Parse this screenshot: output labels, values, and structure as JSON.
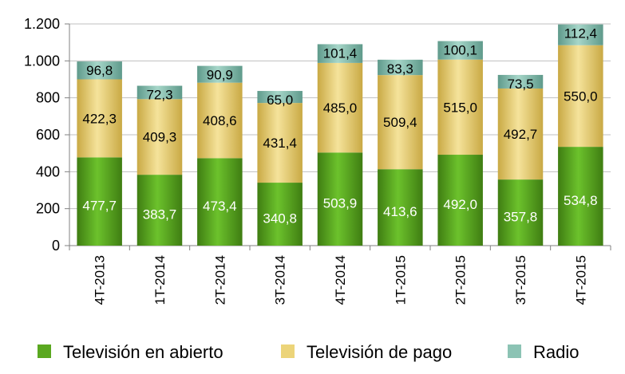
{
  "chart_data": {
    "type": "bar",
    "stacked": true,
    "categories": [
      "4T-2013",
      "1T-2014",
      "2T-2014",
      "3T-2014",
      "4T-2014",
      "1T-2015",
      "2T-2015",
      "3T-2015",
      "4T-2015"
    ],
    "series": [
      {
        "name": "Televisión en abierto",
        "color": "#5aa820",
        "values": [
          477.7,
          383.7,
          473.4,
          340.8,
          503.9,
          413.6,
          492.0,
          357.8,
          534.8
        ],
        "labels": [
          "477,7",
          "383,7",
          "473,4",
          "340,8",
          "503,9",
          "413,6",
          "492,0",
          "357,8",
          "534,8"
        ]
      },
      {
        "name": "Televisión de pago",
        "color": "#ecd479",
        "values": [
          422.3,
          409.3,
          408.6,
          431.4,
          485.0,
          509.4,
          515.0,
          492.7,
          550.0
        ],
        "labels": [
          "422,3",
          "409,3",
          "408,6",
          "431,4",
          "485,0",
          "509,4",
          "515,0",
          "492,7",
          "550,0"
        ]
      },
      {
        "name": "Radio",
        "color": "#8cc3b4",
        "values": [
          96.8,
          72.3,
          90.9,
          65.0,
          101.4,
          83.3,
          100.1,
          73.5,
          112.4
        ],
        "labels": [
          "96,8",
          "72,3",
          "90,9",
          "65,0",
          "101,4",
          "83,3",
          "100,1",
          "73,5",
          "112,4"
        ]
      }
    ],
    "ylim": [
      0,
      1200
    ],
    "yticks": [
      0,
      200,
      400,
      600,
      800,
      1000,
      1200
    ],
    "ytick_labels": [
      "0",
      "200",
      "400",
      "600",
      "800",
      "1.000",
      "1.200"
    ],
    "grid": true,
    "legend": "bottom",
    "xlabel": "",
    "ylabel": "",
    "title": ""
  }
}
